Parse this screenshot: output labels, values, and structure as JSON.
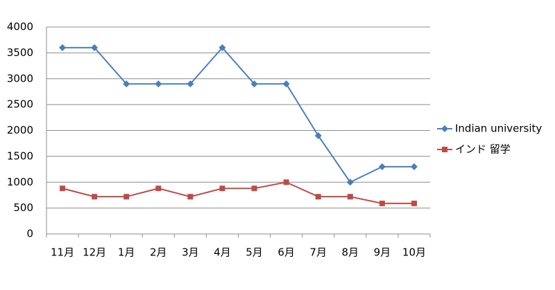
{
  "chart_data": {
    "type": "line",
    "categories": [
      "11月",
      "12月",
      "1月",
      "2月",
      "3月",
      "4月",
      "5月",
      "6月",
      "7月",
      "8月",
      "9月",
      "10月"
    ],
    "series": [
      {
        "name": "Indian university",
        "color": "#4a7ebb",
        "marker": "diamond",
        "values": [
          3600,
          3600,
          2900,
          2900,
          2900,
          3600,
          2900,
          2900,
          1900,
          1000,
          1300,
          1300
        ]
      },
      {
        "name": "インド 留学",
        "color": "#be4b48",
        "marker": "square",
        "values": [
          880,
          720,
          720,
          880,
          720,
          880,
          880,
          1000,
          720,
          720,
          590,
          590
        ]
      }
    ],
    "ylim": [
      0,
      4000
    ],
    "yticks": [
      0,
      500,
      1000,
      1500,
      2000,
      2500,
      3000,
      3500,
      4000
    ],
    "grid": true,
    "legend": "right"
  }
}
